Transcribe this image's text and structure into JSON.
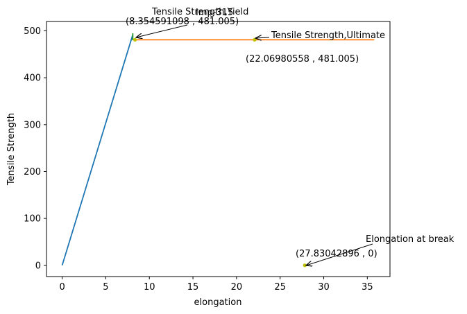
{
  "chart_data": {
    "type": "line",
    "xlabel": "elongation",
    "ylabel": "Tensile Strength",
    "xlim": [
      -1.8,
      37.6
    ],
    "ylim": [
      -24,
      520
    ],
    "x_ticks": [
      0,
      5,
      10,
      15,
      20,
      25,
      30,
      35
    ],
    "y_ticks": [
      0,
      100,
      200,
      300,
      400,
      500
    ],
    "series": [
      {
        "color": "#1f77b4",
        "x": [
          0,
          8.1
        ],
        "y": [
          0,
          492
        ]
      },
      {
        "color": "#ff7f0e",
        "x": [
          8.354591098,
          35.8
        ],
        "y": [
          481.005,
          481.005
        ]
      },
      {
        "color": "#2ca02c",
        "x": [
          8.1,
          8.1
        ],
        "y": [
          480,
          495
        ]
      }
    ],
    "points": [
      {
        "x": 8.354591098,
        "y": 481.005,
        "color": "#bfbf00"
      },
      {
        "x": 22.06980558,
        "y": 481.005,
        "color": "#bfbf00"
      },
      {
        "x": 27.83042896,
        "y": 0,
        "color": "#bfbf00"
      }
    ],
    "annotations": [
      {
        "text": "Tensile Strength,Yield",
        "x": 8.354591098,
        "y": 481.005
      },
      {
        "text": "(8.354591098 , 481.005)"
      },
      {
        "text": "Imp-315"
      },
      {
        "text": "Tensile Strength,Ultimate",
        "x": 22.06980558,
        "y": 481.005
      },
      {
        "text": "(22.06980558 , 481.005)"
      },
      {
        "text": "Elongation at break",
        "x": 27.83042896,
        "y": 0
      },
      {
        "text": "(27.83042896 , 0)"
      }
    ]
  }
}
